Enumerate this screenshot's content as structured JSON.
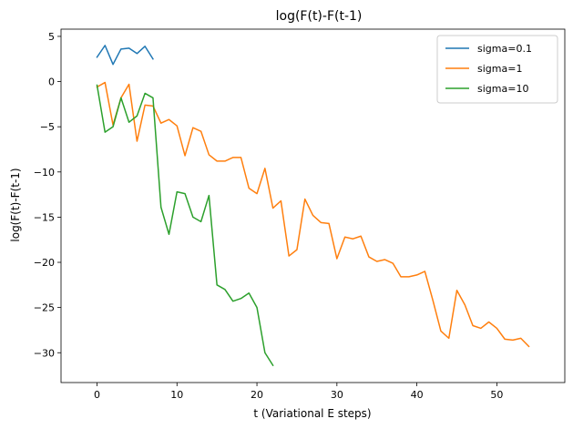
{
  "chart_data": {
    "type": "line",
    "title": "log(F(t)-F(t-1)",
    "xlabel": "t (Variational E steps)",
    "ylabel": "log(F(t)-F(t-1)",
    "xlim": [
      -4.5,
      58.5
    ],
    "ylim": [
      -33.3,
      5.8
    ],
    "xticks": [
      0,
      10,
      20,
      30,
      40,
      50
    ],
    "yticks": [
      5,
      0,
      -5,
      -10,
      -15,
      -20,
      -25,
      -30
    ],
    "grid": false,
    "legend_position": "top-right",
    "series": [
      {
        "name": "sigma=0.1",
        "color": "#1f77b4",
        "x": [
          0,
          1,
          2,
          3,
          4,
          5,
          6,
          7
        ],
        "y": [
          2.7,
          4.0,
          1.9,
          3.6,
          3.7,
          3.1,
          3.9,
          2.5
        ]
      },
      {
        "name": "sigma=1",
        "color": "#ff7f0e",
        "x": [
          0,
          1,
          2,
          3,
          4,
          5,
          6,
          7,
          8,
          9,
          10,
          11,
          12,
          13,
          14,
          15,
          16,
          17,
          18,
          19,
          20,
          21,
          22,
          23,
          24,
          25,
          26,
          27,
          28,
          29,
          30,
          31,
          32,
          33,
          34,
          35,
          36,
          37,
          38,
          39,
          40,
          41,
          42,
          43,
          44,
          45,
          46,
          47,
          48,
          49,
          50,
          51,
          52,
          53,
          54
        ],
        "y": [
          -0.6,
          -0.1,
          -4.8,
          -1.8,
          -0.3,
          -6.6,
          -2.6,
          -2.7,
          -4.6,
          -4.2,
          -4.9,
          -8.2,
          -5.1,
          -5.5,
          -8.1,
          -8.8,
          -8.8,
          -8.4,
          -8.4,
          -11.8,
          -12.4,
          -9.6,
          -14.0,
          -13.2,
          -19.3,
          -18.6,
          -13.0,
          -14.8,
          -15.6,
          -15.7,
          -19.6,
          -17.2,
          -17.4,
          -17.1,
          -19.4,
          -19.9,
          -19.7,
          -20.1,
          -21.6,
          -21.6,
          -21.4,
          -21.0,
          -24.2,
          -27.6,
          -28.4,
          -23.1,
          -24.7,
          -27.0,
          -27.3,
          -26.6,
          -27.3,
          -28.5,
          -28.6,
          -28.4,
          -29.3
        ]
      },
      {
        "name": "sigma=10",
        "color": "#2ca02c",
        "x": [
          0,
          1,
          2,
          3,
          4,
          5,
          6,
          7,
          8,
          9,
          10,
          11,
          12,
          13,
          14,
          15,
          16,
          17,
          18,
          19,
          20,
          21,
          22
        ],
        "y": [
          -0.4,
          -5.6,
          -5.0,
          -1.8,
          -4.5,
          -3.8,
          -1.3,
          -1.8,
          -13.9,
          -16.9,
          -12.2,
          -12.4,
          -15.0,
          -15.5,
          -12.6,
          -22.5,
          -23.0,
          -24.3,
          -24.0,
          -23.4,
          -25.0,
          -30.0,
          -31.4
        ]
      }
    ]
  }
}
